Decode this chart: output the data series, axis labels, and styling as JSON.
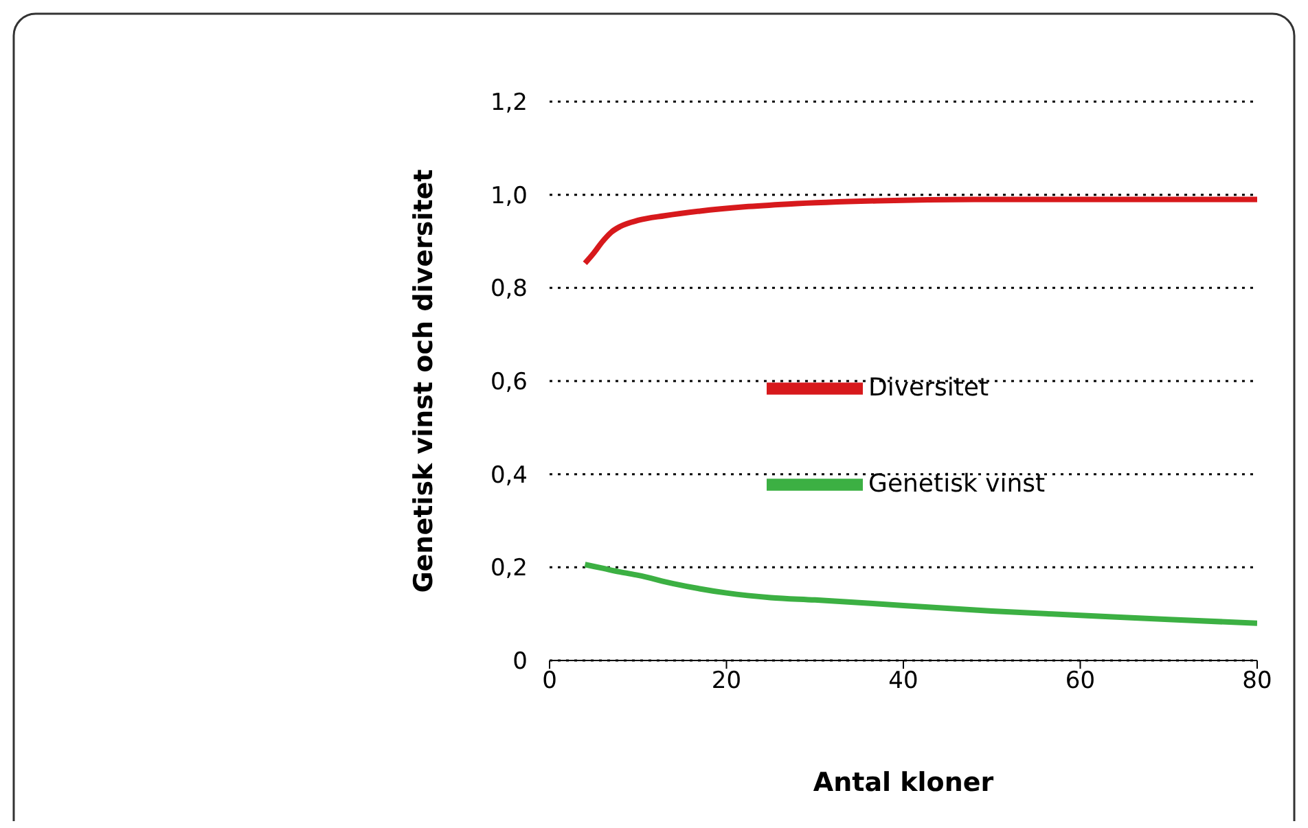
{
  "chart_data": {
    "type": "line",
    "xlabel": "Antal kloner",
    "ylabel": "Genetisk vinst och diversitet",
    "xlim": [
      0,
      80
    ],
    "xticks": [
      0,
      20,
      40,
      60,
      80
    ],
    "ylim": [
      0,
      1.2
    ],
    "yticks": [
      0,
      {
        "value": 0.2,
        "label": "0,2"
      },
      {
        "value": 0.4,
        "label": "0,4"
      },
      {
        "value": 0.6,
        "label": "0,6"
      },
      {
        "value": 0.8,
        "label": "0,8"
      },
      {
        "value": 1.0,
        "label": "1,0"
      },
      {
        "value": 1.2,
        "label": "1,2"
      }
    ],
    "grid": "y",
    "legend": "right",
    "series": [
      {
        "name": "Genetisk vinst",
        "color": "#3cb043",
        "x": [
          4,
          6,
          8,
          10,
          14,
          20,
          25,
          30,
          40,
          50,
          60,
          70,
          80
        ],
        "values": [
          0.206,
          0.198,
          0.19,
          0.183,
          0.165,
          0.145,
          0.135,
          0.13,
          0.118,
          0.106,
          0.097,
          0.088,
          0.08
        ]
      },
      {
        "name": "Diversitet",
        "color": "#d7191c",
        "x": [
          4,
          5,
          6,
          7,
          8,
          10,
          13,
          17,
          22,
          27,
          37,
          48,
          60,
          80
        ],
        "values": [
          0.853,
          0.875,
          0.9,
          0.92,
          0.932,
          0.945,
          0.955,
          0.965,
          0.974,
          0.98,
          0.987,
          0.99,
          0.99,
          0.99
        ]
      }
    ]
  }
}
